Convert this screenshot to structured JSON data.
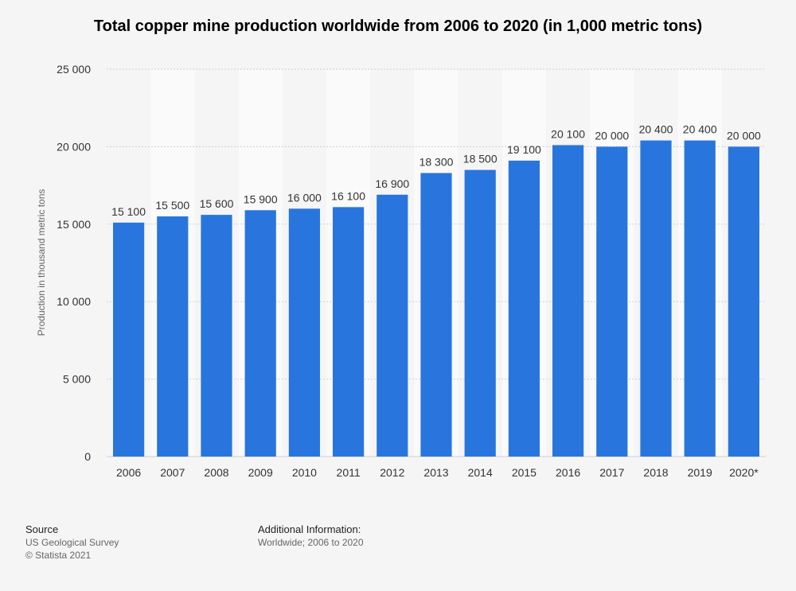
{
  "title": "Total copper mine production worldwide from 2006 to 2020 (in 1,000 metric tons)",
  "chart_data": {
    "type": "bar",
    "title": "Total copper mine production worldwide from 2006 to 2020 (in 1,000 metric tons)",
    "xlabel": "",
    "ylabel": "Production in thousand metric tons",
    "categories": [
      "2006",
      "2007",
      "2008",
      "2009",
      "2010",
      "2011",
      "2012",
      "2013",
      "2014",
      "2015",
      "2016",
      "2017",
      "2018",
      "2019",
      "2020*"
    ],
    "values": [
      15100,
      15500,
      15600,
      15900,
      16000,
      16100,
      16900,
      18300,
      18500,
      19100,
      20100,
      20000,
      20400,
      20400,
      20000
    ],
    "value_labels": [
      "15 100",
      "15 500",
      "15 600",
      "15 900",
      "16 000",
      "16 100",
      "16 900",
      "18 300",
      "18 500",
      "19 100",
      "20 100",
      "20 000",
      "20 400",
      "20 400",
      "20 000"
    ],
    "ylim": [
      0,
      25000
    ],
    "yticks": [
      0,
      5000,
      10000,
      15000,
      20000,
      25000
    ],
    "ytick_labels": [
      "0",
      "5 000",
      "10 000",
      "15 000",
      "20 000",
      "25 000"
    ],
    "grid": true,
    "bar_color": "#2876dd"
  },
  "footer": {
    "source_heading": "Source",
    "source_lines": [
      "US Geological Survey",
      "© Statista 2021"
    ],
    "info_heading": "Additional Information:",
    "info_lines": [
      "Worldwide; 2006 to 2020"
    ]
  }
}
